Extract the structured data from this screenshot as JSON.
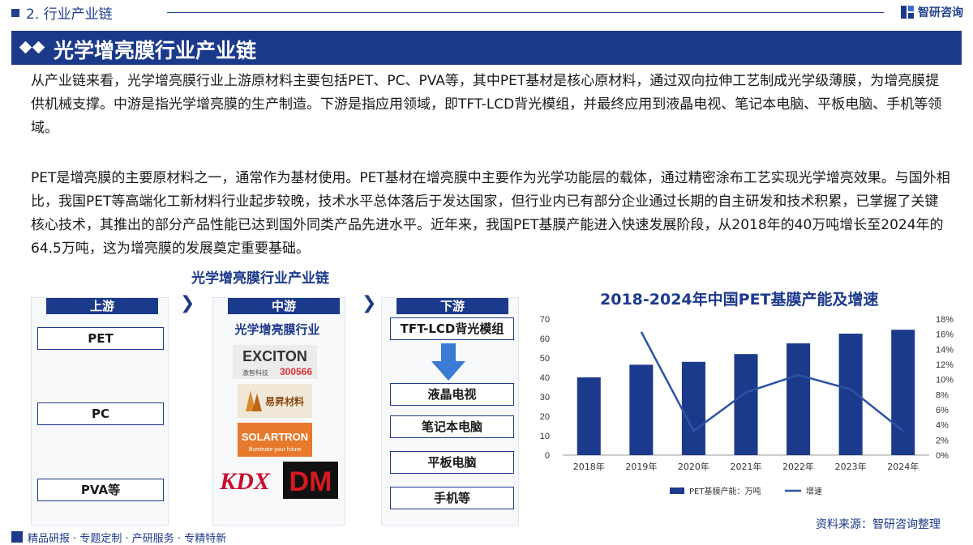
{
  "header": {
    "section": "2. 行业产业链",
    "brand": "智研咨询"
  },
  "title": "光学增亮膜行业产业链",
  "paragraphs": {
    "p1": "从产业链来看，光学增亮膜行业上游原材料主要包括PET、PC、PVA等，其中PET基材是核心原材料，通过双向拉伸工艺制成光学级薄膜，为增亮膜提供机械支撑。中游是指光学增亮膜的生产制造。下游是指应用领域，即TFT-LCD背光模组，并最终应用到液晶电视、笔记本电脑、平板电脑、手机等领域。",
    "p2": "PET是增亮膜的主要原材料之一，通常作为基材使用。PET基材在增亮膜中主要作为光学功能层的载体，通过精密涂布工艺实现光学增亮效果。与国外相比，我国PET等高端化工新材料行业起步较晚，技术水平总体落后于发达国家，但行业内已有部分企业通过长期的自主研发和技术积累，已掌握了关键核心技术，其推出的部分产品性能已达到国外同类产品先进水平。近年来，我国PET基膜产能进入快速发展阶段，从2018年的40万吨增长至2024年的64.5万吨，这为增亮膜的发展奠定重要基础。"
  },
  "chain": {
    "title": "光学增亮膜行业产业链",
    "upstream": {
      "label": "上游",
      "items": [
        "PET",
        "PC",
        "PVA等"
      ]
    },
    "midstream": {
      "label": "中游",
      "sub": "光学增亮膜行业",
      "logos": [
        "EXCITON",
        "激智科技",
        "300566",
        "易昇材料",
        "SOLARTRON",
        "Illuminate your future",
        "KDX",
        "DM"
      ]
    },
    "downstream": {
      "label": "下游",
      "top": "TFT-LCD背光模组",
      "items": [
        "液晶电视",
        "笔记本电脑",
        "平板电脑",
        "手机等"
      ]
    }
  },
  "chart_data": {
    "type": "bar",
    "title": "2018-2024年中国PET基膜产能及增速",
    "categories": [
      "2018年",
      "2019年",
      "2020年",
      "2021年",
      "2022年",
      "2023年",
      "2024年"
    ],
    "series": [
      {
        "name": "PET基膜产能：万吨",
        "type": "bar",
        "axis": "left",
        "values": [
          40,
          46.5,
          48,
          52,
          57.5,
          62.5,
          64.5
        ]
      },
      {
        "name": "增速",
        "type": "line",
        "axis": "right",
        "values": [
          null,
          16.3,
          3.2,
          8.3,
          10.6,
          8.7,
          3.2
        ]
      }
    ],
    "left_axis": {
      "min": 0,
      "max": 70,
      "ticks": [
        "0",
        "10",
        "20",
        "30",
        "40",
        "50",
        "60",
        "70"
      ]
    },
    "right_axis": {
      "min": 0,
      "max": 18,
      "ticks": [
        "0%",
        "2%",
        "4%",
        "6%",
        "8%",
        "10%",
        "12%",
        "14%",
        "16%",
        "18%"
      ]
    },
    "legend_position": "bottom",
    "grid": false,
    "colors": {
      "bar": "#1c3a8c",
      "line": "#2c53a6"
    }
  },
  "source": "资料来源：智研咨询整理",
  "footer": "精品研报 · 专题定制 · 产研服务 · 专精特新"
}
